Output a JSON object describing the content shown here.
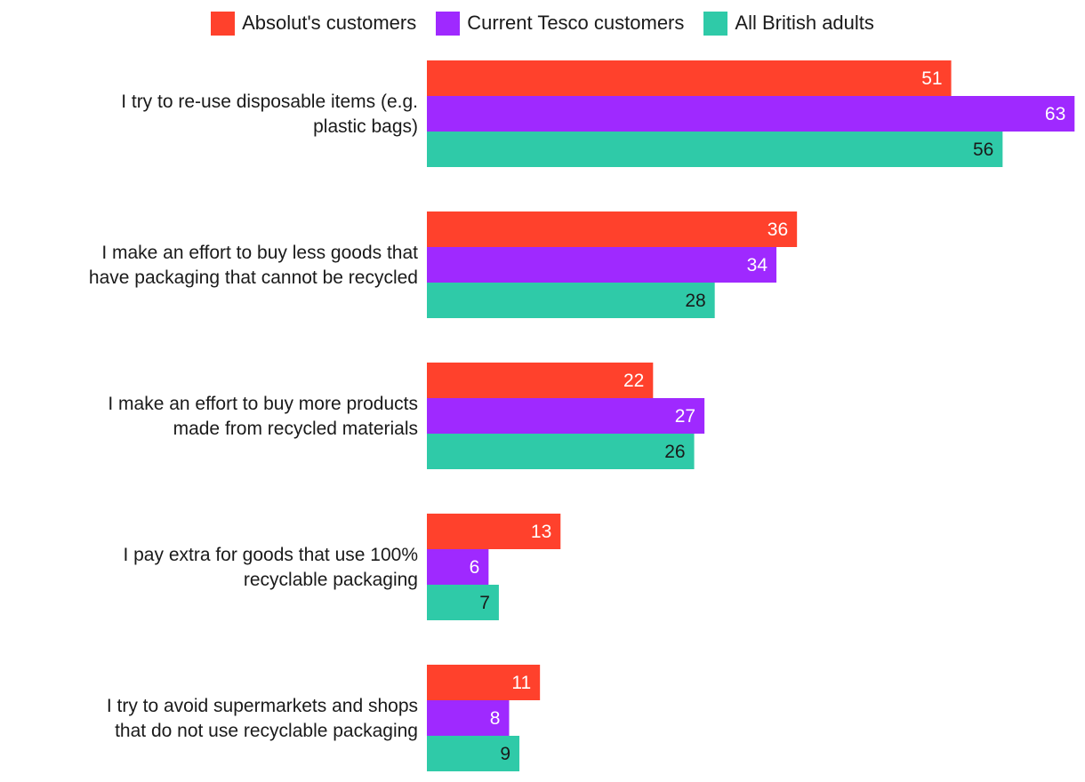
{
  "chart_data": {
    "type": "bar",
    "orientation": "horizontal",
    "title": "",
    "xlabel": "",
    "ylabel": "",
    "xlim": [
      0,
      63
    ],
    "grid": false,
    "legend_position": "top-center",
    "categories": [
      "I try to re-use disposable items (e.g. plastic bags)",
      "I make an effort to buy less goods that have packaging that cannot be recycled",
      "I make an effort to buy more products made from recycled materials",
      "I pay extra for goods that use 100% recyclable packaging",
      "I try to avoid supermarkets and shops that do not use recyclable packaging"
    ],
    "category_lines": [
      [
        "I try to re-use disposable items (e.g.",
        "plastic bags)"
      ],
      [
        "I make an effort to buy less goods that",
        "have packaging that cannot be recycled"
      ],
      [
        "I make an effort to buy more products",
        "made from recycled materials"
      ],
      [
        "I pay extra for goods that use 100%",
        "recyclable packaging"
      ],
      [
        "I try to avoid supermarkets and shops",
        "that do not use recyclable packaging"
      ]
    ],
    "series": [
      {
        "name": "Absolut's customers",
        "color": "#ff412c",
        "label_color": "#ffffff",
        "values": [
          51,
          36,
          22,
          13,
          11
        ]
      },
      {
        "name": "Current Tesco customers",
        "color": "#9f29ff",
        "label_color": "#ffffff",
        "values": [
          63,
          34,
          27,
          6,
          8
        ]
      },
      {
        "name": "All British adults",
        "color": "#2fcaa8",
        "label_color": "#1a1a1a",
        "values": [
          56,
          28,
          26,
          7,
          9
        ]
      }
    ]
  }
}
